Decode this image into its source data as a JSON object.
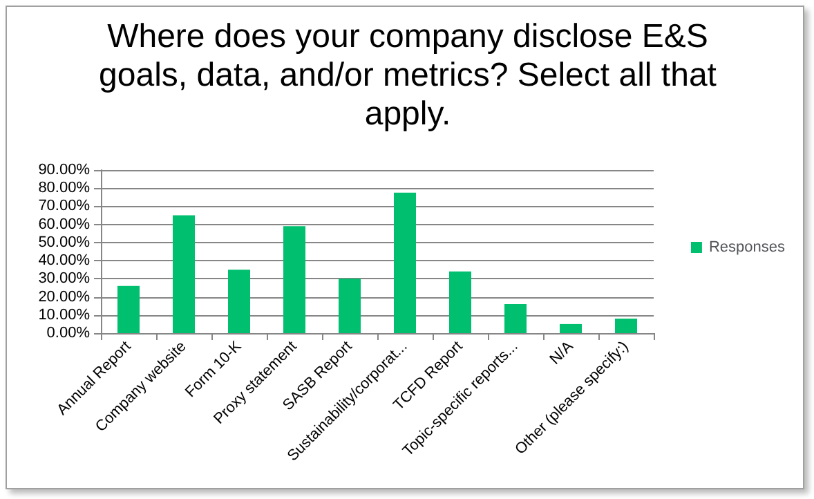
{
  "chart_data": {
    "type": "bar",
    "title": "Where does your company disclose E&S goals, data, and/or metrics? Select all that apply.",
    "categories": [
      "Annual Report",
      "Company website",
      "Form 10-K",
      "Proxy statement",
      "SASB Report",
      "Sustainability/corporat...",
      "TCFD Report",
      "Topic-specific reports...",
      "N/A",
      "Other (please specify:)"
    ],
    "series": [
      {
        "name": "Responses",
        "color": "#00bf6f",
        "values": [
          26,
          65,
          35,
          59,
          30,
          77.5,
          34,
          16,
          5,
          8
        ]
      }
    ],
    "ylim": [
      0,
      90
    ],
    "yticks": [
      {
        "value": 0,
        "label": "0.00%"
      },
      {
        "value": 10,
        "label": "10.00%"
      },
      {
        "value": 20,
        "label": "20.00%"
      },
      {
        "value": 30,
        "label": "30.00%"
      },
      {
        "value": 40,
        "label": "40.00%"
      },
      {
        "value": 50,
        "label": "50.00%"
      },
      {
        "value": 60,
        "label": "60.00%"
      },
      {
        "value": 70,
        "label": "70.00%"
      },
      {
        "value": 80,
        "label": "80.00%"
      },
      {
        "value": 90,
        "label": "90.00%"
      }
    ],
    "grid": "y",
    "legend": "right"
  }
}
